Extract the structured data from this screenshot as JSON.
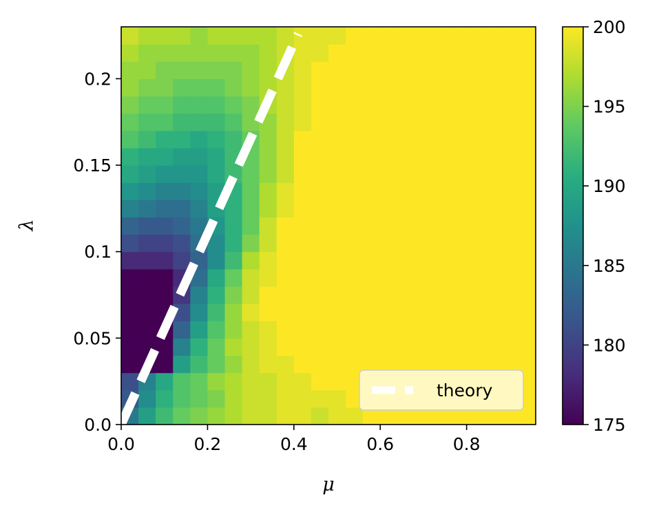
{
  "chart_data": {
    "type": "heatmap",
    "title": "",
    "xlabel": "μ",
    "ylabel": "λ",
    "x_range": [
      0.0,
      0.96
    ],
    "y_range": [
      0.0,
      0.23
    ],
    "x_ticks": [
      0.0,
      0.2,
      0.4,
      0.6,
      0.8
    ],
    "x_tick_labels": [
      "0.0",
      "0.2",
      "0.4",
      "0.6",
      "0.8"
    ],
    "y_ticks": [
      0.0,
      0.05,
      0.1,
      0.15,
      0.2
    ],
    "y_tick_labels": [
      "0.0",
      "0.05",
      "0.1",
      "0.15",
      "0.2"
    ],
    "colormap": "viridis",
    "colorbar": {
      "range": [
        175,
        200
      ],
      "ticks": [
        175,
        180,
        185,
        190,
        195,
        200
      ],
      "tick_labels": [
        "175",
        "180",
        "185",
        "190",
        "195",
        "200"
      ]
    },
    "grid": {
      "x_bin_width": 0.04,
      "y_bin_width": 0.01,
      "n_cols": 24,
      "n_rows": 23,
      "default_value": 200,
      "note_rows": "row 0 is the bin 0.00–0.01; each list holds values for columns starting at μ=0.00"
    },
    "values_by_row": [
      [
        185,
        189,
        192,
        194,
        195,
        196,
        197,
        198,
        198,
        199,
        199,
        198,
        199,
        199
      ],
      [
        182,
        187,
        191,
        193,
        194,
        195,
        197,
        198,
        198,
        199,
        199,
        199,
        199
      ],
      [
        181,
        186,
        190,
        193,
        194,
        196,
        197,
        198,
        198,
        199,
        199
      ],
      [
        175,
        175,
        175,
        189,
        192,
        194,
        196,
        198,
        199,
        199
      ],
      [
        175,
        175,
        175,
        186,
        191,
        194,
        197,
        198,
        199
      ],
      [
        175,
        175,
        175,
        183,
        189,
        193,
        196,
        198,
        199
      ],
      [
        175,
        175,
        175,
        181,
        187,
        192,
        196,
        199
      ],
      [
        175,
        175,
        175,
        179,
        186,
        191,
        195,
        198
      ],
      [
        175,
        175,
        175,
        178,
        184,
        190,
        194,
        198,
        199
      ],
      [
        178,
        178,
        178,
        180,
        183,
        187,
        192,
        197,
        199
      ],
      [
        181,
        180,
        180,
        181,
        184,
        187,
        191,
        195,
        198
      ],
      [
        183,
        182,
        182,
        183,
        185,
        188,
        191,
        194,
        198
      ],
      [
        186,
        185,
        184,
        184,
        186,
        189,
        191,
        194,
        197,
        199
      ],
      [
        188,
        187,
        186,
        186,
        187,
        189,
        191,
        194,
        197,
        199
      ],
      [
        190,
        189,
        188,
        188,
        188,
        190,
        192,
        194,
        196,
        198
      ],
      [
        191,
        190,
        190,
        189,
        189,
        190,
        192,
        194,
        196,
        198
      ],
      [
        193,
        192,
        191,
        191,
        190,
        191,
        192,
        194,
        196,
        198
      ],
      [
        194,
        193,
        193,
        192,
        192,
        192,
        193,
        195,
        196,
        198,
        199
      ],
      [
        195,
        194,
        194,
        193,
        193,
        193,
        194,
        195,
        197,
        198,
        199
      ],
      [
        196,
        195,
        195,
        194,
        194,
        194,
        195,
        196,
        197,
        198,
        199
      ],
      [
        196,
        196,
        195,
        195,
        195,
        195,
        195,
        196,
        197,
        198,
        199
      ],
      [
        197,
        196,
        196,
        196,
        196,
        196,
        196,
        196,
        197,
        198,
        199,
        199
      ],
      [
        198,
        197,
        197,
        197,
        196,
        197,
        197,
        197,
        197,
        198,
        199,
        199,
        199
      ]
    ],
    "series": [
      {
        "name": "theory",
        "style": "dashed",
        "color": "#ffffff",
        "x": [
          0.0,
          0.41
        ],
        "y": [
          0.0,
          0.226
        ]
      }
    ],
    "legend": {
      "position": "bottom-right"
    }
  }
}
